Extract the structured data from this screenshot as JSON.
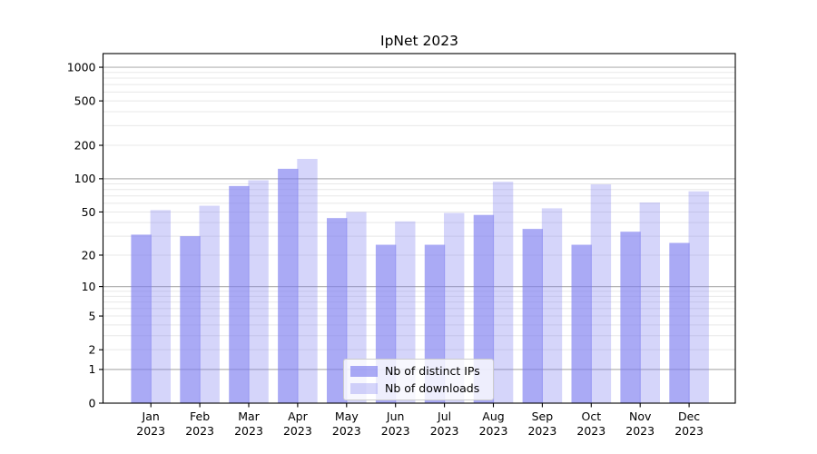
{
  "title": "IpNet 2023",
  "chart_data": {
    "type": "bar",
    "title": "IpNet 2023",
    "categories": [
      "Jan",
      "Feb",
      "Mar",
      "Apr",
      "May",
      "Jun",
      "Jul",
      "Aug",
      "Sep",
      "Oct",
      "Nov",
      "Dec"
    ],
    "category_year": "2023",
    "series": [
      {
        "name": "Nb of distinct IPs",
        "values": [
          31,
          30,
          86,
          123,
          44,
          25,
          25,
          47,
          35,
          25,
          33,
          26
        ],
        "color": "rgba(124,124,240,0.65)"
      },
      {
        "name": "Nb of downloads",
        "values": [
          52,
          57,
          97,
          151,
          50,
          41,
          49,
          94,
          54,
          89,
          61,
          77
        ],
        "color": "rgba(124,124,240,0.32)"
      }
    ],
    "yscale": "log10(value+1)",
    "yticks": [
      0,
      1,
      2,
      5,
      10,
      20,
      50,
      100,
      200,
      500,
      1000
    ],
    "major_grid_values": [
      1,
      10,
      100,
      1000
    ],
    "minor_grid_multiples": [
      2,
      3,
      4,
      5,
      6,
      7,
      8,
      9
    ],
    "ylim": [
      0,
      1325
    ],
    "xlabel": "",
    "ylabel": "",
    "grid": true,
    "legend_position": "lower center"
  },
  "colors": {
    "bar_base": "#7c7cf0",
    "major_grid": "#b3b3b3",
    "minor_grid": "#e8e8e8",
    "axis": "#000000",
    "text": "#000000",
    "legend_border": "#cccccc",
    "background": "#ffffff"
  }
}
